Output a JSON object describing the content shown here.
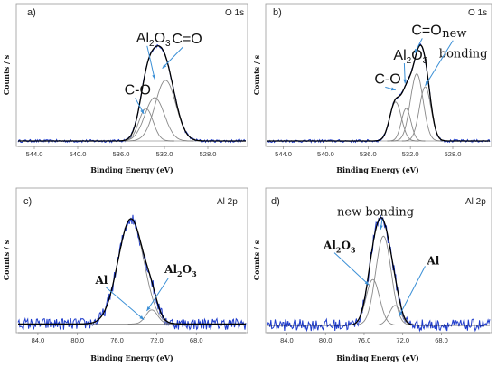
{
  "chart_data": [
    {
      "type": "line",
      "panel": "a)",
      "core_level": "O 1s",
      "xlabel": "Binding Energy (eV)",
      "ylabel": "Counts / s",
      "xlim": [
        545.5,
        524.5
      ],
      "ylim": [
        0,
        1.15
      ],
      "xticks": [
        "544.0",
        "540.0",
        "536.0",
        "532.0",
        "528.0"
      ],
      "tick_values": [
        544,
        540,
        536,
        532,
        528
      ],
      "components": [
        {
          "name": "C-O",
          "center": 533.7,
          "height": 0.3,
          "width": 0.65
        },
        {
          "name": "Al2O3",
          "center": 532.9,
          "height": 0.4,
          "width": 0.9
        },
        {
          "name": "C=O",
          "center": 531.9,
          "height": 0.56,
          "width": 0.95
        }
      ],
      "baseline": 0.05,
      "labels": [
        {
          "text": "C-O",
          "x": 535.7,
          "y": 0.48
        },
        {
          "text": "Al",
          "sub": "2",
          "tail": "O",
          "sub2": "3",
          "x": 534.6,
          "y": 0.96
        },
        {
          "text": "C=O",
          "x": 531.3,
          "y": 0.95
        }
      ]
    },
    {
      "type": "line",
      "panel": "b)",
      "core_level": "O 1s",
      "xlabel": "Binding Energy (eV)",
      "ylabel": "Counts / s",
      "xlim": [
        545.5,
        524.5
      ],
      "ylim": [
        0,
        1.15
      ],
      "xticks": [
        "544.0",
        "540.0",
        "536.0",
        "532.0",
        "528.0"
      ],
      "tick_values": [
        544,
        540,
        536,
        532,
        528
      ],
      "components": [
        {
          "name": "C-O",
          "center": 533.4,
          "height": 0.36,
          "width": 0.55
        },
        {
          "name": "Al2O3",
          "center": 532.4,
          "height": 0.3,
          "width": 0.45
        },
        {
          "name": "C=O",
          "center": 531.4,
          "height": 0.62,
          "width": 0.6
        },
        {
          "name": "new bonding",
          "center": 530.6,
          "height": 0.5,
          "width": 0.55
        }
      ],
      "baseline": 0.05,
      "labels": [
        {
          "text": "C-O",
          "x": 535.4,
          "y": 0.58
        },
        {
          "text": "Al",
          "sub": "2",
          "tail": "O",
          "sub2": "3",
          "x": 533.6,
          "y": 0.8
        },
        {
          "text": "C=O",
          "x": 531.9,
          "y": 1.03
        },
        {
          "text": "new",
          "x": 529.0,
          "y": 1.01
        },
        {
          "text": "bonding",
          "x": 529.3,
          "y": 0.82
        }
      ]
    },
    {
      "type": "line",
      "panel": "c)",
      "core_level": "Al 2p",
      "xlabel": "Binding Energy (eV)",
      "ylabel": "Counts / s",
      "xlim": [
        86,
        63
      ],
      "ylim": [
        0,
        1.15
      ],
      "xticks": [
        "84.0",
        "80.0",
        "76.0",
        "72.0",
        "68.0"
      ],
      "tick_values": [
        84,
        80,
        76,
        72,
        68
      ],
      "components": [
        {
          "name": "Al",
          "center": 74.6,
          "height": 0.97,
          "width": 1.3
        },
        {
          "name": "Al2O3",
          "center": 72.5,
          "height": 0.13,
          "width": 0.6
        }
      ],
      "baseline": 0.08,
      "labels": [
        {
          "text": "Al",
          "x": 78.2,
          "y": 0.45
        },
        {
          "text": "Al",
          "sub": "2",
          "tail": "O",
          "sub2": "3",
          "x": 71.2,
          "y": 0.55
        }
      ]
    },
    {
      "type": "line",
      "panel": "d)",
      "core_level": "Al 2p",
      "xlabel": "Binding Energy (eV)",
      "ylabel": "Counts / s",
      "xlim": [
        86,
        63
      ],
      "ylim": [
        0,
        1.15
      ],
      "xticks": [
        "84.0",
        "80.0",
        "76.0",
        "72.0",
        "68.0"
      ],
      "tick_values": [
        84,
        80,
        76,
        72,
        68
      ],
      "components": [
        {
          "name": "Al2O3",
          "center": 75.1,
          "height": 0.42,
          "width": 0.7
        },
        {
          "name": "new bonding",
          "center": 74.0,
          "height": 0.82,
          "width": 0.8
        },
        {
          "name": "Al",
          "center": 72.8,
          "height": 0.18,
          "width": 0.6
        }
      ],
      "baseline": 0.07,
      "labels": [
        {
          "text": "new bonding",
          "x": 78.8,
          "y": 1.08
        },
        {
          "text": "Al",
          "sub": "2",
          "tail": "O",
          "sub2": "3",
          "x": 80.2,
          "y": 0.77
        },
        {
          "text": "Al",
          "x": 69.5,
          "y": 0.63
        }
      ]
    }
  ],
  "colors": {
    "raw": "#1f3ccc",
    "envelope": "#000000",
    "component": "#888888",
    "arrow": "#3a8fd6"
  }
}
